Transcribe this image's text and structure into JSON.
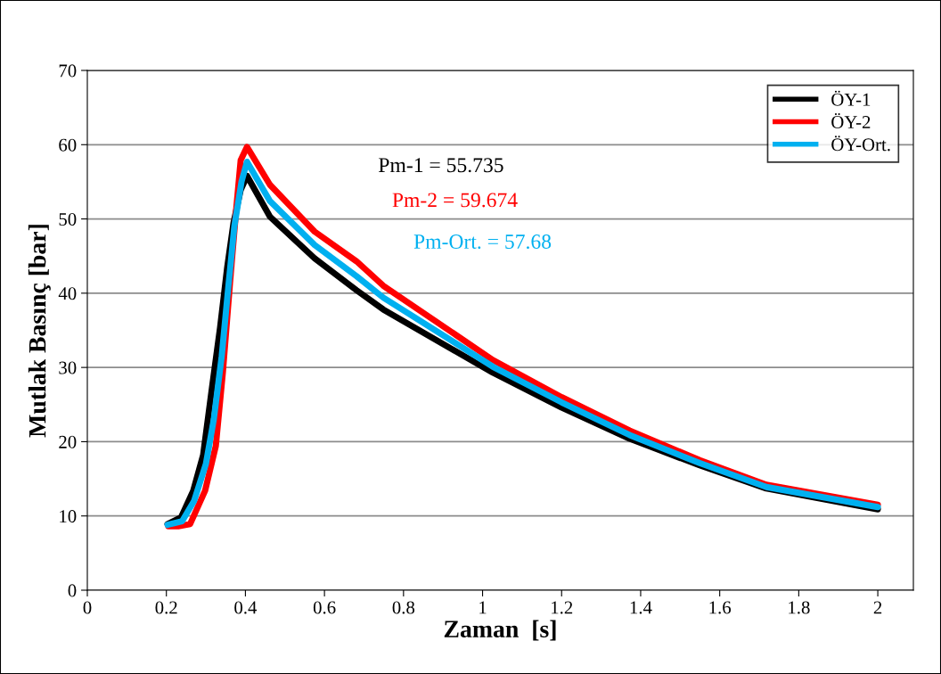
{
  "chart_data": {
    "type": "line",
    "xlabel": "Zaman  [s]",
    "ylabel": "Mutlak Basınç [bar]",
    "xlim": [
      0,
      2.09
    ],
    "xticks": [
      0,
      0.2,
      0.4,
      0.6,
      0.8,
      1,
      1.2,
      1.4,
      1.6,
      1.8,
      2
    ],
    "ylim": [
      0,
      70
    ],
    "yticks": [
      0,
      10,
      20,
      30,
      40,
      50,
      60,
      70
    ],
    "grid": "y",
    "legend": "top right",
    "marker": "none",
    "line_style": "solid",
    "annotations": [
      "Pm-1 = 55.735",
      "Pm-2 = 59.674",
      "Pm-Ort. = 57.68"
    ],
    "series": [
      {
        "name": "ÖY-1",
        "color": "#000000",
        "x": [
          0.203,
          0.237,
          0.268,
          0.293,
          0.316,
          0.336,
          0.354,
          0.37,
          0.388,
          0.404,
          0.462,
          0.575,
          0.681,
          0.749,
          1.026,
          1.2,
          1.372,
          1.55,
          1.718,
          2.0
        ],
        "values": [
          8.9,
          9.8,
          13.4,
          18.2,
          27.5,
          35.4,
          43.5,
          49.5,
          53.9,
          55.8,
          50.3,
          44.7,
          40.4,
          37.8,
          29.3,
          24.6,
          20.4,
          16.8,
          13.7,
          10.9
        ]
      },
      {
        "name": "ÖY-2",
        "color": "#ff0000",
        "x": [
          0.205,
          0.23,
          0.26,
          0.298,
          0.325,
          0.343,
          0.361,
          0.377,
          0.388,
          0.404,
          0.462,
          0.575,
          0.681,
          0.749,
          1.026,
          1.2,
          1.372,
          1.55,
          1.718,
          2.0
        ],
        "values": [
          8.6,
          8.6,
          8.9,
          13.4,
          19.4,
          29.4,
          41.4,
          51.5,
          57.9,
          59.7,
          54.6,
          48.3,
          44.3,
          41.0,
          31.0,
          26.0,
          21.5,
          17.5,
          14.2,
          11.5
        ]
      },
      {
        "name": "ÖY-Ort.",
        "color": "#00b0f0",
        "x": [
          0.203,
          0.24,
          0.27,
          0.3,
          0.32,
          0.34,
          0.357,
          0.372,
          0.39,
          0.404,
          0.462,
          0.575,
          0.681,
          0.749,
          1.026,
          1.2,
          1.372,
          1.55,
          1.718,
          2.0
        ],
        "values": [
          8.8,
          9.3,
          12.0,
          17.0,
          23.0,
          31.5,
          41.0,
          49.0,
          55.0,
          57.7,
          52.4,
          46.5,
          42.3,
          39.4,
          30.1,
          25.3,
          20.9,
          17.1,
          13.9,
          11.2
        ]
      }
    ]
  }
}
